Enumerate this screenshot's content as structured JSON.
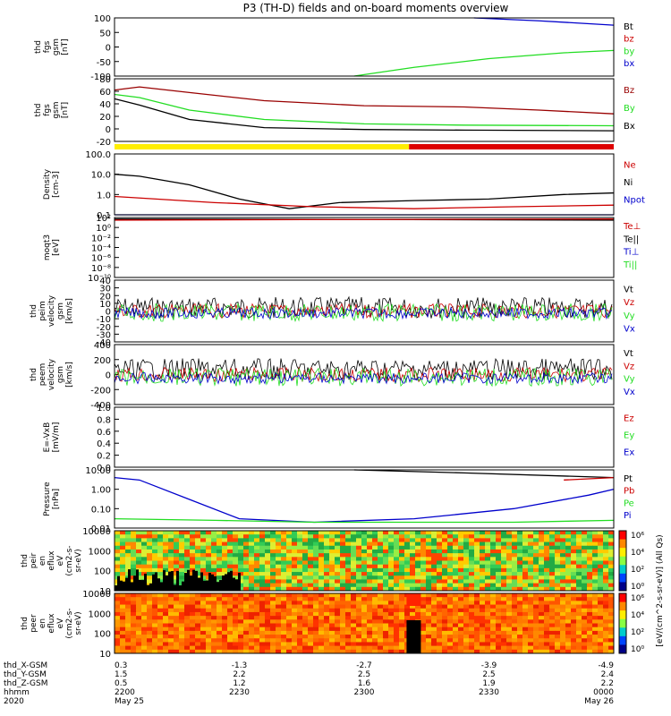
{
  "title": "P3 (TH-D) fields and on-board moments overview",
  "colors": {
    "black": "#000000",
    "red": "#cc0000",
    "green": "#22dd22",
    "blue": "#0000cc",
    "yellow": "#ffee00",
    "darkred": "#990000"
  },
  "time_axis": {
    "hhmm": [
      "2200",
      "2230",
      "2300",
      "2330",
      "0000"
    ],
    "dates": [
      "May 25",
      "",
      "",
      "",
      "May 26"
    ],
    "year": "2020",
    "row_labels": [
      "thd_X-GSM",
      "thd_Y-GSM",
      "thd_Z-GSM",
      "hhmm",
      "2020"
    ],
    "x_gsm": [
      "0.3",
      "-1.3",
      "-2.7",
      "-3.9",
      "-4.9"
    ],
    "y_gsm": [
      "1.5",
      "2.2",
      "2.5",
      "2.5",
      "2.4"
    ],
    "z_gsm": [
      "0.5",
      "1.2",
      "1.6",
      "1.9",
      "2.2"
    ]
  },
  "chart_data": [
    {
      "id": "p1",
      "type": "line",
      "ylabel": [
        "thd",
        "fgs",
        "gsm",
        "[nT]"
      ],
      "ylim": [
        -100,
        100
      ],
      "ticks": [
        "100",
        "50",
        "0",
        "-50",
        "-100"
      ],
      "legend": [
        "Bt",
        "bz",
        "by",
        "bx"
      ],
      "series": [
        {
          "name": "Bt",
          "color": "blue",
          "x": [
            0.72,
            0.85,
            1.0
          ],
          "y": [
            100,
            90,
            75
          ]
        },
        {
          "name": "by",
          "color": "green",
          "x": [
            0.48,
            0.6,
            0.75,
            0.9,
            1.0
          ],
          "y": [
            -100,
            -70,
            -40,
            -20,
            -12
          ]
        }
      ]
    },
    {
      "id": "p2",
      "type": "line",
      "ylabel": [
        "thd",
        "fgs",
        "gsm",
        "[nT]"
      ],
      "ylim": [
        -20,
        80
      ],
      "ticks": [
        "80",
        "60",
        "40",
        "20",
        "0",
        "-20"
      ],
      "legend": [
        "Bz",
        "By",
        "Bx"
      ],
      "series": [
        {
          "name": "Bz",
          "color": "darkred",
          "x": [
            0,
            0.05,
            0.15,
            0.3,
            0.5,
            0.7,
            0.85,
            1.0
          ],
          "y": [
            62,
            67,
            58,
            45,
            37,
            35,
            30,
            24
          ]
        },
        {
          "name": "By",
          "color": "green",
          "x": [
            0,
            0.05,
            0.15,
            0.3,
            0.5,
            0.7,
            1.0
          ],
          "y": [
            55,
            50,
            30,
            15,
            8,
            6,
            5
          ]
        },
        {
          "name": "Bx",
          "color": "black",
          "x": [
            0,
            0.05,
            0.15,
            0.3,
            0.5,
            0.7,
            1.0
          ],
          "y": [
            48,
            38,
            15,
            2,
            -1,
            -2,
            -3
          ]
        }
      ]
    },
    {
      "id": "p3",
      "type": "line",
      "log": true,
      "ylabel": [
        "Density",
        "[cm-3]"
      ],
      "ylim": [
        0.1,
        100
      ],
      "ticks": [
        "100.0",
        "10.0",
        "1.0",
        "0.1"
      ],
      "legend": [
        "Ne",
        "Ni",
        "Npot"
      ],
      "series": [
        {
          "name": "Ni",
          "color": "black",
          "x": [
            0,
            0.05,
            0.15,
            0.25,
            0.35,
            0.45,
            0.6,
            0.75,
            0.9,
            1.0
          ],
          "y": [
            10,
            8,
            3,
            0.6,
            0.2,
            0.4,
            0.5,
            0.6,
            1.0,
            1.2
          ]
        },
        {
          "name": "Ne",
          "color": "red",
          "x": [
            0,
            0.2,
            0.4,
            0.6,
            0.8,
            1.0
          ],
          "y": [
            0.8,
            0.4,
            0.25,
            0.2,
            0.25,
            0.3
          ]
        },
        {
          "name": "Npot",
          "color": "blue",
          "x": [
            0,
            0.5,
            1.0
          ],
          "y": [
            0.1,
            0.1,
            0.1
          ]
        }
      ]
    },
    {
      "id": "p4",
      "type": "line",
      "log": true,
      "ylabel": [
        "moqt3",
        "[eV]"
      ],
      "ylim": [
        1e-10,
        100
      ],
      "ticks": [
        "10²",
        "10⁰",
        "10⁻²",
        "10⁻⁴",
        "10⁻⁶",
        "10⁻⁸",
        "10⁻¹⁰"
      ],
      "legend": [
        "Te⊥",
        "Te||",
        "Ti⊥",
        "Ti||"
      ],
      "series": [
        {
          "name": "Te||",
          "color": "black",
          "x": [
            0,
            0.5,
            1.0
          ],
          "y": [
            50,
            40,
            30
          ]
        },
        {
          "name": "Ti⊥",
          "color": "red",
          "x": [
            0,
            0.5,
            1.0
          ],
          "y": [
            30,
            40,
            50
          ]
        }
      ]
    },
    {
      "id": "p5",
      "type": "line",
      "ylabel": [
        "thd",
        "peim",
        "velocity",
        "gsm",
        "[km/s]"
      ],
      "ylim": [
        -40,
        40
      ],
      "ticks": [
        "40",
        "30",
        "20",
        "10",
        "0",
        "-10",
        "-20",
        "-30",
        "-40"
      ],
      "legend": [
        "Vt",
        "Vz",
        "Vy",
        "Vx"
      ],
      "series": []
    },
    {
      "id": "p6",
      "type": "line",
      "ylabel": [
        "thd",
        "peem",
        "velocity",
        "gsm",
        "[km/s]"
      ],
      "ylim": [
        -400,
        400
      ],
      "ticks": [
        "400",
        "200",
        "0",
        "-200",
        "-400"
      ],
      "legend": [
        "Vt",
        "Vz",
        "Vy",
        "Vx"
      ],
      "series": []
    },
    {
      "id": "p7",
      "type": "line",
      "ylabel": [
        "E=-VxB",
        "[mV/m]"
      ],
      "ylim": [
        0,
        1
      ],
      "ticks": [
        "1.0",
        "0.8",
        "0.6",
        "0.4",
        "0.2",
        "0.0"
      ],
      "legend": [
        "Ez",
        "Ey",
        "Ex"
      ],
      "series": []
    },
    {
      "id": "p8",
      "type": "line",
      "log": true,
      "ylabel": [
        "Pressure",
        "[nPa]"
      ],
      "ylim": [
        0.01,
        10
      ],
      "ticks": [
        "10.00",
        "1.00",
        "0.10",
        "0.01"
      ],
      "legend": [
        "Pt",
        "Pb",
        "Pe",
        "Pi"
      ],
      "series": [
        {
          "name": "Pt",
          "color": "black",
          "x": [
            0.48,
            0.7,
            1.0
          ],
          "y": [
            10,
            7,
            4
          ]
        },
        {
          "name": "Pb",
          "color": "blue",
          "x": [
            0,
            0.05,
            0.15,
            0.25,
            0.4,
            0.6,
            0.8,
            0.95,
            1.0
          ],
          "y": [
            4,
            3,
            0.3,
            0.03,
            0.02,
            0.03,
            0.1,
            0.5,
            1.0
          ]
        },
        {
          "name": "Pe",
          "color": "red",
          "x": [
            0.9,
            1.0
          ],
          "y": [
            3,
            4
          ]
        },
        {
          "name": "Pi",
          "color": "green",
          "x": [
            0,
            0.2,
            0.4,
            0.6,
            0.8,
            1.0
          ],
          "y": [
            0.03,
            0.025,
            0.02,
            0.02,
            0.02,
            0.025
          ]
        }
      ]
    },
    {
      "id": "p9",
      "type": "heatmap",
      "ylabel": [
        "thd",
        "peir",
        "en",
        "eflux",
        "eV",
        "(cm2-s-",
        "sr-eV)"
      ],
      "ticks": [
        "10000",
        "1000",
        "100",
        "10"
      ]
    },
    {
      "id": "p10",
      "type": "heatmap",
      "ylabel": [
        "thd",
        "peer",
        "en",
        "eflux",
        "eV",
        "(cm2-s-",
        "sr-eV)"
      ],
      "ticks": [
        "10000",
        "1000",
        "100",
        "10"
      ]
    }
  ],
  "colorbar": {
    "ticks": [
      "10⁶",
      "10⁴",
      "10²",
      "10⁰"
    ],
    "label": "[eV/(cm^2-s-sr-eV)] (All Qs)"
  }
}
